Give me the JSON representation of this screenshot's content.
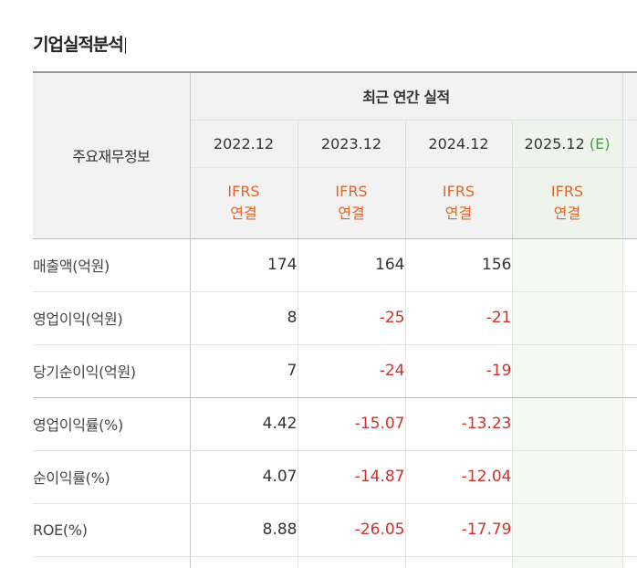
{
  "title": "기업실적분석",
  "table": {
    "label_header": "주요재무정보",
    "group_header": "최근 연간 실적",
    "years": [
      {
        "label": "2022.12",
        "est": ""
      },
      {
        "label": "2023.12",
        "est": ""
      },
      {
        "label": "2024.12",
        "est": ""
      },
      {
        "label": "2025.12",
        "est": "(E)"
      }
    ],
    "standards": [
      {
        "line1": "IFRS",
        "line2": "연결"
      },
      {
        "line1": "IFRS",
        "line2": "연결"
      },
      {
        "line1": "IFRS",
        "line2": "연결"
      },
      {
        "line1": "IFRS",
        "line2": "연결"
      }
    ],
    "rows": [
      {
        "label": "매출액(억원)",
        "values": [
          "174",
          "164",
          "156",
          ""
        ]
      },
      {
        "label": "영업이익(억원)",
        "values": [
          "8",
          "-25",
          "-21",
          ""
        ]
      },
      {
        "label": "당기순이익(억원)",
        "values": [
          "7",
          "-24",
          "-19",
          ""
        ]
      },
      {
        "label": "영업이익률(%)",
        "values": [
          "4.42",
          "-15.07",
          "-13.23",
          ""
        ]
      },
      {
        "label": "순이익률(%)",
        "values": [
          "4.07",
          "-14.87",
          "-12.04",
          ""
        ]
      },
      {
        "label": "ROE(%)",
        "values": [
          "8.88",
          "-26.05",
          "-17.79",
          ""
        ]
      }
    ]
  },
  "colors": {
    "negative": "#d4302a",
    "standard": "#e2652a",
    "estimate": "#4a9a47"
  }
}
